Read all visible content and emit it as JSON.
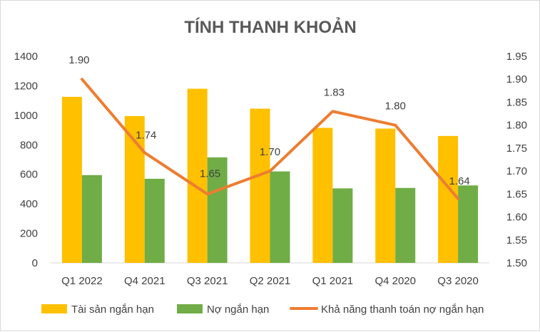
{
  "chart_data": {
    "type": "bar",
    "title": "TÍNH THANH KHOẢN",
    "categories": [
      "Q1 2022",
      "Q4 2021",
      "Q3 2021",
      "Q2 2021",
      "Q1 2021",
      "Q4 2020",
      "Q3 2020"
    ],
    "series": [
      {
        "name": "Tài sản ngắn hạn",
        "type": "bar",
        "axis": "left",
        "color": "#FFC000",
        "values": [
          1125,
          995,
          1180,
          1045,
          915,
          910,
          860
        ]
      },
      {
        "name": "Nợ ngắn hạn",
        "type": "bar",
        "axis": "left",
        "color": "#70AD47",
        "values": [
          595,
          570,
          715,
          620,
          505,
          508,
          525
        ]
      },
      {
        "name": "Khả năng thanh toán nợ ngắn hạn",
        "type": "line",
        "axis": "right",
        "color": "#ED7D31",
        "values": [
          1.9,
          1.74,
          1.65,
          1.7,
          1.83,
          1.8,
          1.64
        ],
        "labels": [
          "1.90",
          "1.74",
          "1.65",
          "1.70",
          "1.83",
          "1.80",
          "1.64"
        ]
      }
    ],
    "left_axis": {
      "min": 0,
      "max": 1400,
      "ticks": [
        "0",
        "200",
        "400",
        "600",
        "800",
        "1000",
        "1200",
        "1400"
      ]
    },
    "right_axis": {
      "min": 1.5,
      "max": 1.95,
      "ticks": [
        "1.50",
        "1.55",
        "1.60",
        "1.65",
        "1.70",
        "1.75",
        "1.80",
        "1.85",
        "1.90",
        "1.95"
      ]
    },
    "grid": false,
    "legend_position": "bottom"
  }
}
